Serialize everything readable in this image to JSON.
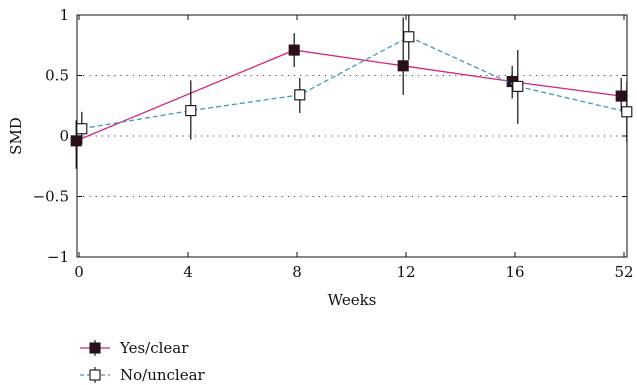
{
  "chart_data": {
    "type": "line",
    "title": "",
    "xlabel": "Weeks",
    "ylabel": "SMD",
    "categories": [
      "0",
      "4",
      "8",
      "12",
      "16",
      "52"
    ],
    "ylim": [
      -1,
      1
    ],
    "yticks": [
      -1,
      -0.5,
      0,
      0.5,
      1
    ],
    "ytick_labels": [
      "−1",
      "−0.5",
      "0",
      "0.5",
      "1"
    ],
    "grid": "dotted horizontal lines at -0.5, 0 and 0.5",
    "legend_position": "bottom-left, below plot",
    "series": [
      {
        "name": "Yes/clear",
        "color": "#d6247c",
        "marker": "filled-square",
        "marker_color": "#111111",
        "line_style": "solid",
        "x_offset": -0.2,
        "points": [
          {
            "x": "0",
            "y": -0.04,
            "low": -0.27,
            "high": 0.13
          },
          {
            "x": "8",
            "y": 0.71,
            "low": 0.57,
            "high": 0.85
          },
          {
            "x": "12",
            "y": 0.58,
            "low": 0.34,
            "high": 0.98
          },
          {
            "x": "16",
            "y": 0.45,
            "low": 0.31,
            "high": 0.58
          },
          {
            "x": "52",
            "y": 0.33,
            "low": 0.2,
            "high": 0.48
          }
        ]
      },
      {
        "name": "No/unclear",
        "color": "#3d98c6",
        "marker": "open-square",
        "marker_color": "#111111",
        "line_style": "dashed",
        "x_offset": 0.2,
        "points": [
          {
            "x": "0",
            "y": 0.06,
            "low": -0.07,
            "high": 0.2
          },
          {
            "x": "4",
            "y": 0.21,
            "low": -0.03,
            "high": 0.46
          },
          {
            "x": "8",
            "y": 0.34,
            "low": 0.19,
            "high": 0.48
          },
          {
            "x": "12",
            "y": 0.82,
            "low": 0.63,
            "high": 1.0
          },
          {
            "x": "16",
            "y": 0.41,
            "low": 0.1,
            "high": 0.71
          },
          {
            "x": "52",
            "y": 0.2,
            "low": -0.05,
            "high": 0.45
          }
        ]
      }
    ]
  }
}
